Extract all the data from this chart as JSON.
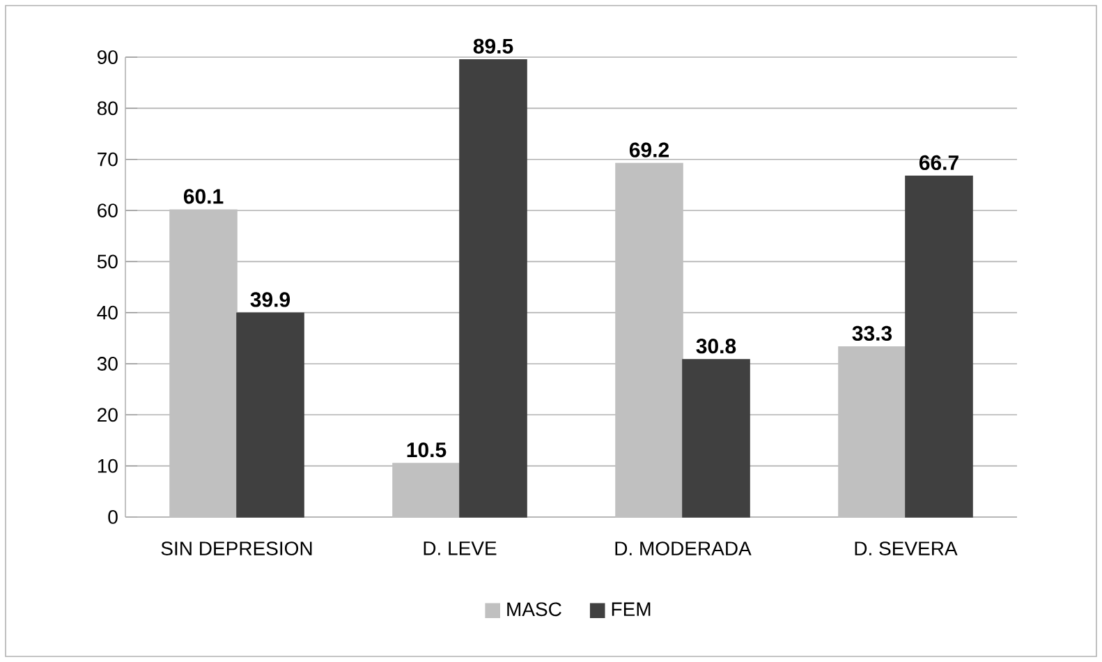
{
  "chart_data": {
    "type": "bar",
    "categories": [
      "SIN DEPRESION",
      "D. LEVE",
      "D. MODERADA",
      "D. SEVERA"
    ],
    "series": [
      {
        "name": "MASC",
        "color": "#c0c0c0",
        "values": [
          60.1,
          10.5,
          69.2,
          33.3
        ],
        "value_labels": [
          "60.1",
          "10.5",
          "69.2",
          "33.3"
        ]
      },
      {
        "name": "FEM",
        "color": "#404040",
        "values": [
          39.9,
          89.5,
          30.8,
          66.7
        ],
        "value_labels": [
          "39.9",
          "89.5",
          "30.8",
          "66.7"
        ]
      }
    ],
    "ylim": [
      0,
      90
    ],
    "yticks": [
      0,
      10,
      20,
      30,
      40,
      50,
      60,
      70,
      80,
      90
    ],
    "grid": "y",
    "legend": "bottom"
  }
}
